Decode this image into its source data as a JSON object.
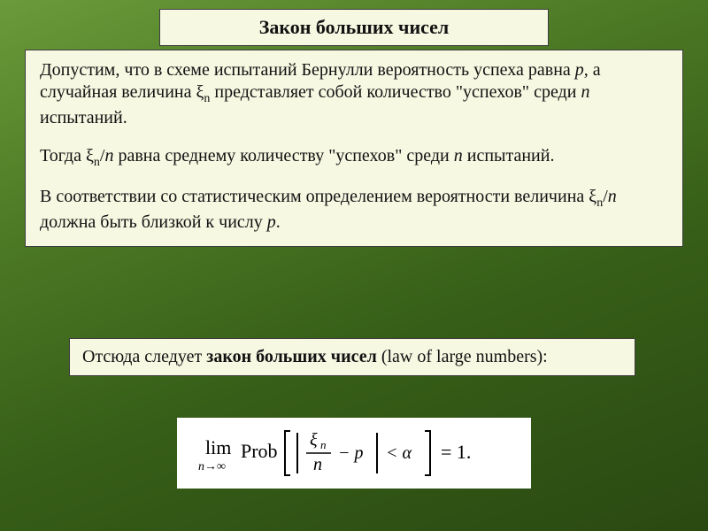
{
  "slide": {
    "title": "Закон больших чисел",
    "main_html": "Допустим, что в схеме испытаний Бернулли вероятность успеха равна <span class=\"ital\">p,</span> а случайная величина ξ<span class=\"sub\">n</span> представляет собой количество \"успехов\" среди  <span class=\"ital\">n</span> испытаний.|Тогда ξ<span class=\"sub\">n</span>/<span class=\"ital\">n</span> равна среднему количеству \"успехов\" среди <span class=\"ital\">n</span> испытаний.|В соответствии со статистическим определением вероятности величина ξ<span class=\"sub\">n</span>/<span class=\"ital\">n</span> должна быть близкой к числу <span class=\"ital\">p</span>.",
    "law_html": "Отсюда следует <b>закон больших чисел</b> (law of large numbers):"
  },
  "formula": {
    "lim_text": "lim",
    "lim_sub": "n→∞",
    "prob_text": "Prob",
    "frac_top": "ξ",
    "frac_top_sub": "n",
    "frac_bot": "n",
    "minus_p": "− p",
    "lt": "< α",
    "eq": "= 1."
  },
  "style": {
    "box_bg": "#f7f8e2",
    "box_border": "#3d3d3d",
    "slide_bg_from": "#6a9a3a",
    "slide_bg_to": "#2a4912",
    "text_color": "#111111",
    "title_fontsize": 22,
    "body_fontsize": 20
  }
}
